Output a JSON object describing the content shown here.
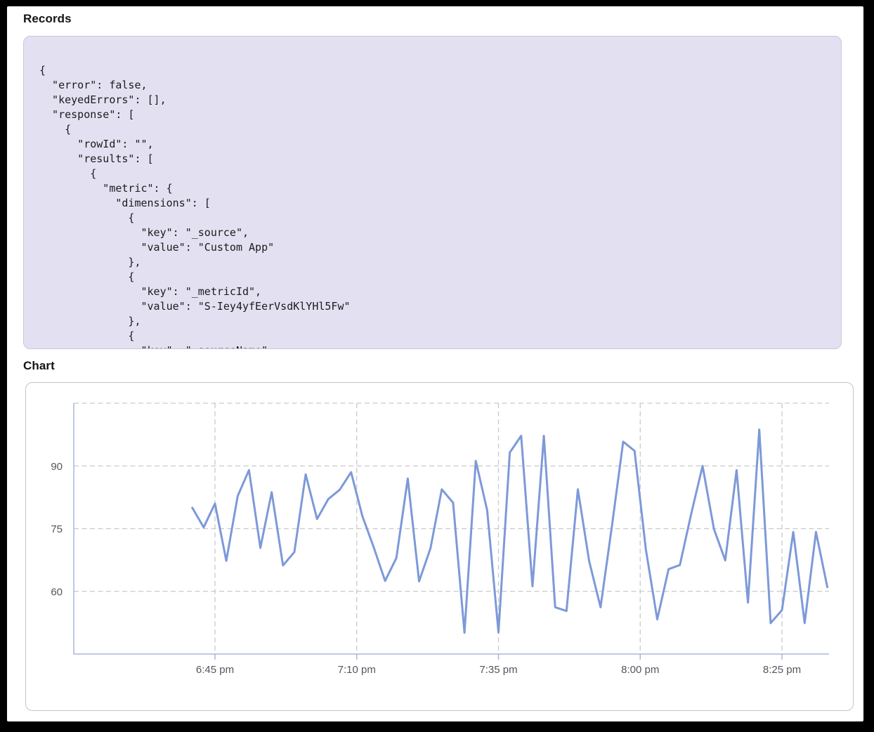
{
  "records": {
    "heading": "Records",
    "code_lines": [
      "{",
      "  \"error\": false,",
      "  \"keyedErrors\": [],",
      "  \"response\": [",
      "    {",
      "      \"rowId\": \"\",",
      "      \"results\": [",
      "        {",
      "          \"metric\": {",
      "            \"dimensions\": [",
      "              {",
      "                \"key\": \"_source\",",
      "                \"value\": \"Custom App\"",
      "              },",
      "              {",
      "                \"key\": \"_metricId\",",
      "                \"value\": \"S-Iey4yfEerVsdKlYHl5Fw\"",
      "              },",
      "              {",
      "                \"key\": \"_sourceName\","
    ]
  },
  "chart": {
    "heading": "Chart"
  },
  "chart_data": {
    "type": "line",
    "title": "",
    "xlabel": "",
    "ylabel": "",
    "x": [
      "6:41 pm",
      "6:43 pm",
      "6:45 pm",
      "6:47 pm",
      "6:49 pm",
      "6:51 pm",
      "6:53 pm",
      "6:55 pm",
      "6:57 pm",
      "6:59 pm",
      "7:01 pm",
      "7:03 pm",
      "7:05 pm",
      "7:07 pm",
      "7:09 pm",
      "7:11 pm",
      "7:13 pm",
      "7:15 pm",
      "7:17 pm",
      "7:19 pm",
      "7:21 pm",
      "7:23 pm",
      "7:25 pm",
      "7:27 pm",
      "7:29 pm",
      "7:31 pm",
      "7:33 pm",
      "7:35 pm",
      "7:37 pm",
      "7:39 pm",
      "7:41 pm",
      "7:43 pm",
      "7:45 pm",
      "7:47 pm",
      "7:49 pm",
      "7:51 pm",
      "7:53 pm",
      "7:55 pm",
      "7:57 pm",
      "7:59 pm",
      "8:01 pm",
      "8:03 pm",
      "8:05 pm",
      "8:07 pm",
      "8:09 pm",
      "8:11 pm",
      "8:13 pm",
      "8:15 pm",
      "8:17 pm",
      "8:19 pm",
      "8:21 pm",
      "8:23 pm",
      "8:25 pm",
      "8:27 pm",
      "8:29 pm",
      "8:31 pm",
      "8:33 pm"
    ],
    "values": [
      80,
      75.3,
      81,
      67.3,
      82.8,
      89,
      70.4,
      83.7,
      66.2,
      69.4,
      88,
      77.3,
      82.1,
      84.3,
      88.5,
      78,
      70.5,
      62.5,
      68,
      87,
      62.4,
      70.3,
      84.4,
      81.2,
      50.1,
      91.2,
      79.4,
      50.2,
      93.2,
      97.2,
      61.2,
      97.2,
      56.2,
      55.3,
      84.4,
      67.2,
      56.2,
      75.5,
      95.8,
      93.6,
      70,
      53.3,
      65.3,
      66.3,
      78.6,
      90,
      74.9,
      67.4,
      89,
      57.3,
      98.7,
      52.4,
      55.5,
      74.2,
      52.4,
      74.2,
      61
    ],
    "x_tick_labels": [
      "6:45 pm",
      "7:10 pm",
      "7:35 pm",
      "8:00 pm",
      "8:25 pm"
    ],
    "y_tick_labels": [
      "90",
      "75",
      "60"
    ],
    "y_ticks": [
      90,
      75,
      60
    ],
    "grid_y_values": [
      105,
      90,
      75,
      60
    ],
    "ylim": [
      45,
      105
    ],
    "grid": "dashed",
    "legend_position": "none",
    "line_color": "#7d99d8",
    "axis_color": "#aab5dc",
    "grid_color": "#c9c9cb",
    "label_color": "#54575e"
  }
}
